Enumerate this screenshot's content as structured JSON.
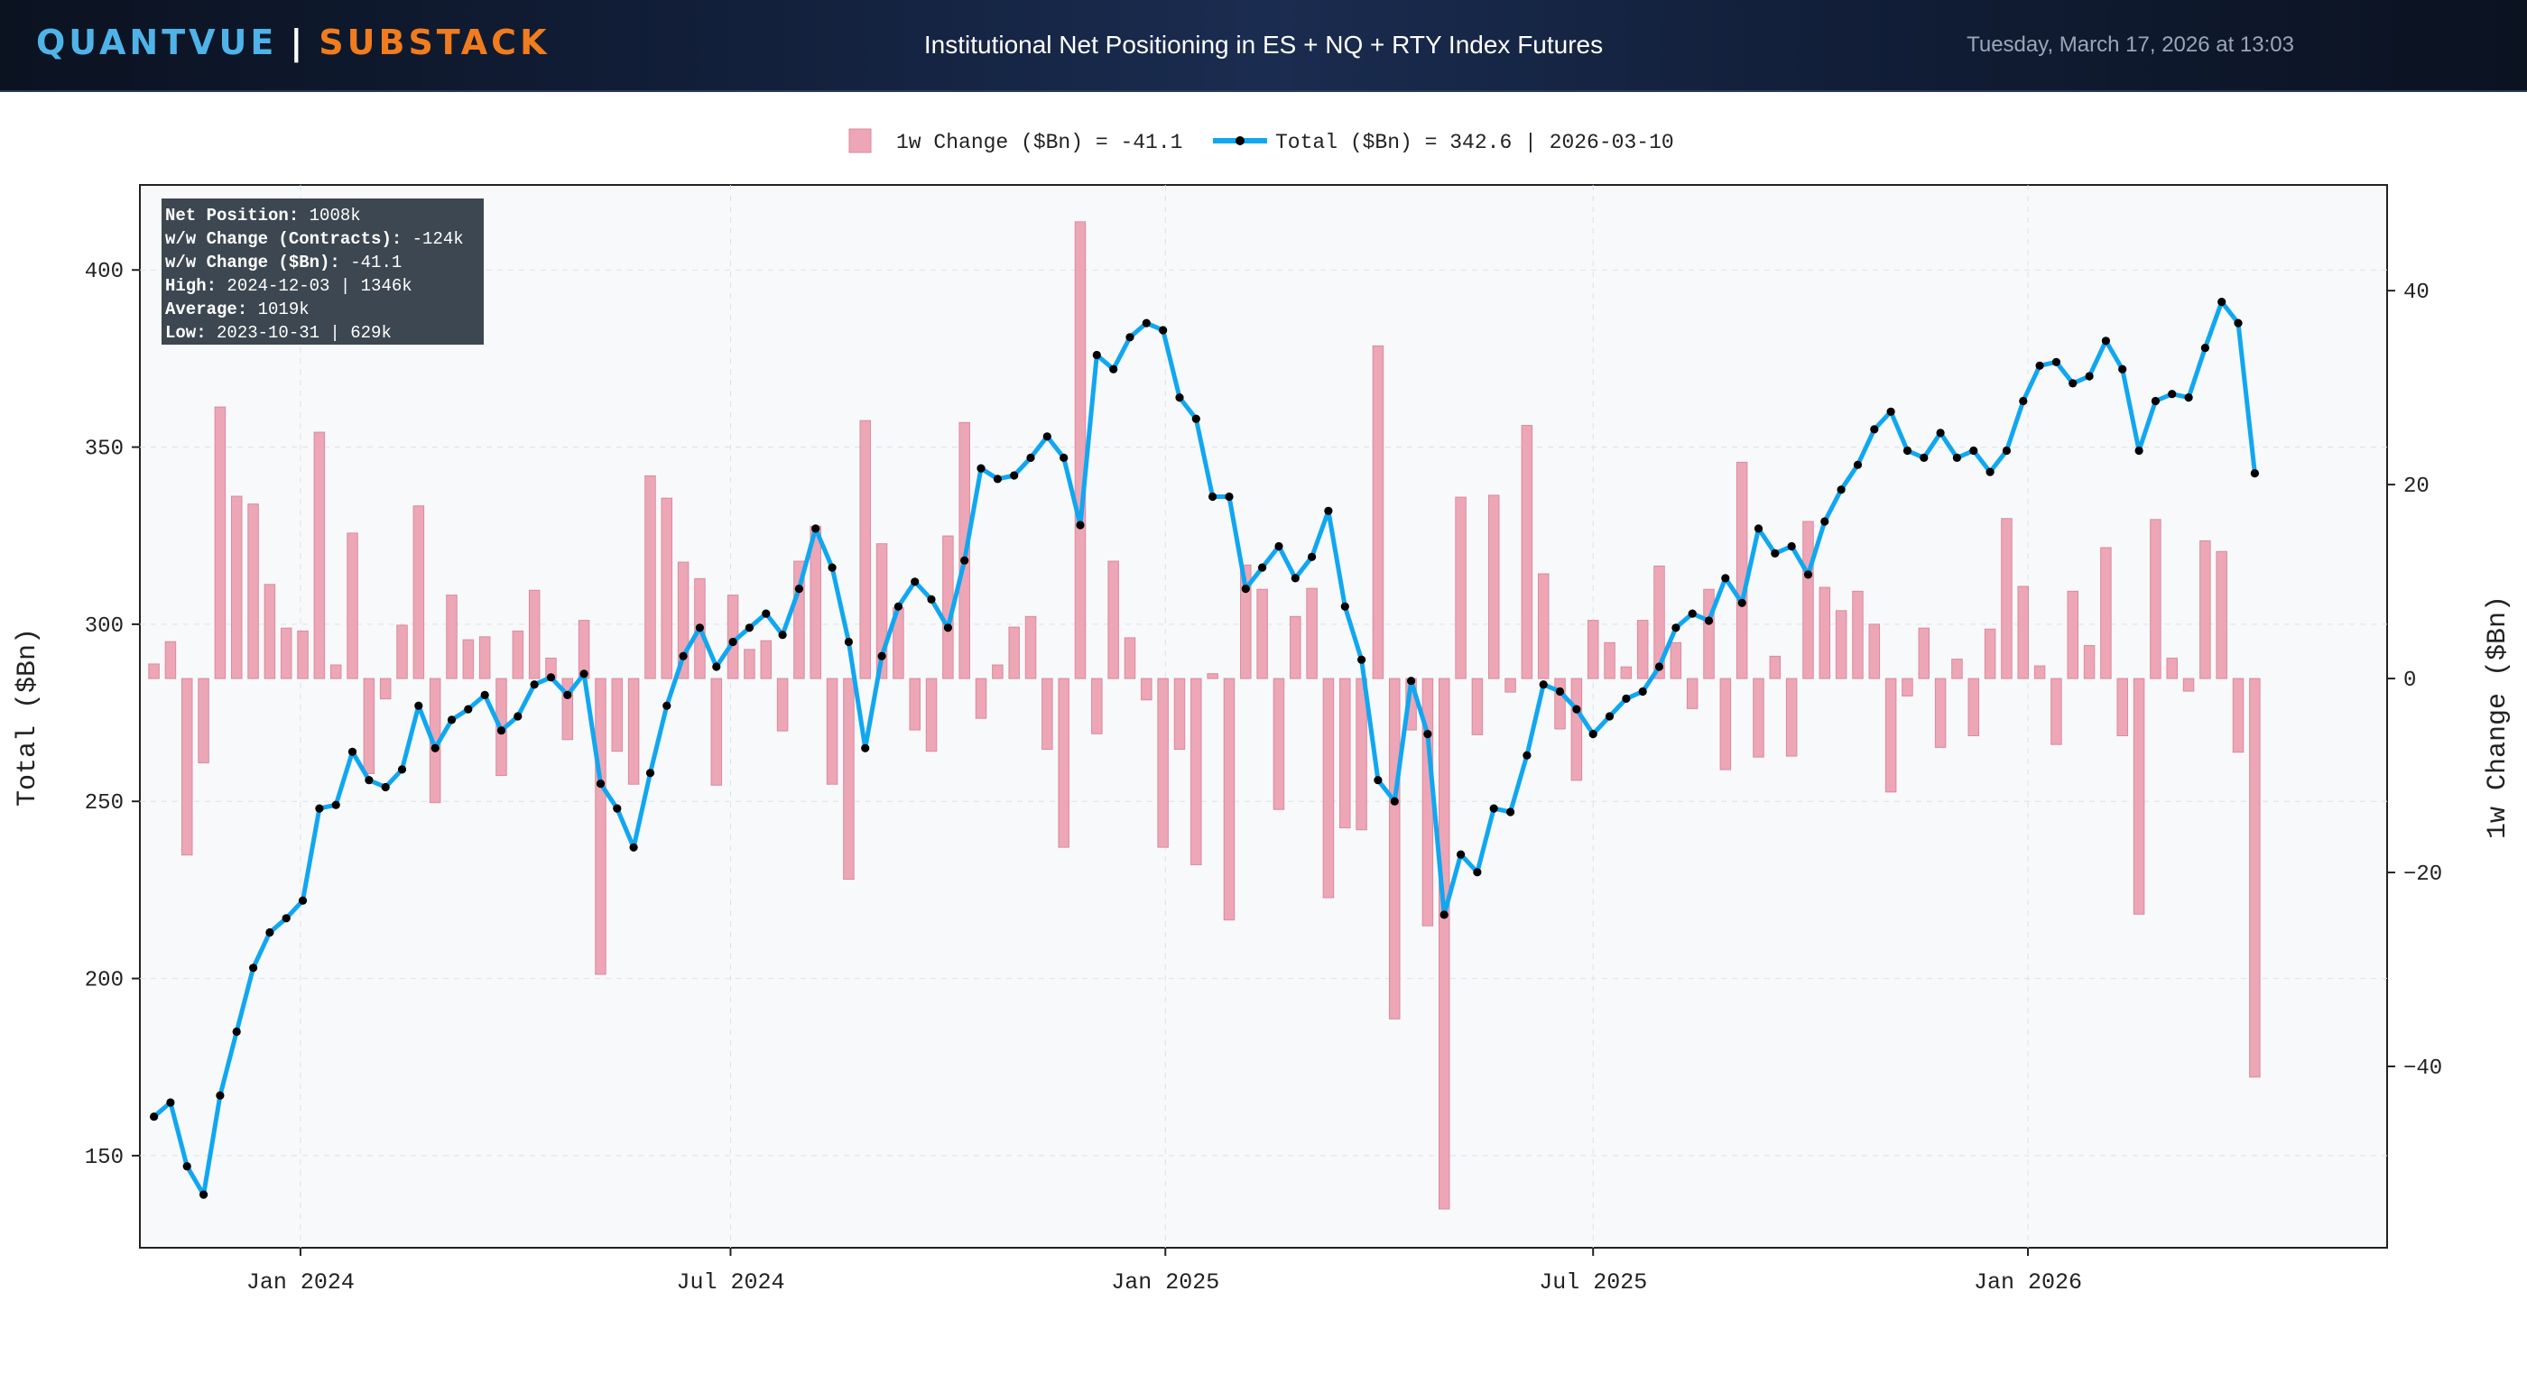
{
  "header": {
    "brand_left": "QUANTVUE",
    "brand_sep": "|",
    "brand_right": "SUBSTACK",
    "title": "Institutional Net Positioning in ES + NQ + RTY Index Futures",
    "timestamp": "Tuesday, March 17, 2026 at 13:03"
  },
  "colors": {
    "bar": "#eda6b6",
    "line": "#11a7f0",
    "marker": "#000000",
    "bg": "#f7f9fb"
  },
  "chart_data": {
    "type": "bar+line",
    "legend": {
      "bar_label": "1w Change ($Bn) = -41.1",
      "line_label": "Total ($Bn) = 342.6 | 2026-03-10"
    },
    "stats": [
      {
        "key": "Net Position:",
        "value": " 1008k"
      },
      {
        "key": "w/w Change (Contracts):",
        "value": " -124k"
      },
      {
        "key": "w/w Change ($Bn):",
        "value": " -41.1"
      },
      {
        "key": "High:",
        "value": " 2024-12-03 | 1346k"
      },
      {
        "key": "Average:",
        "value": " 1019k"
      },
      {
        "key": "Low:",
        "value": " 2023-10-31 | 629k"
      }
    ],
    "ylabel_left": "Total ($Bn)",
    "ylabel_right": "1w Change ($Bn)",
    "ylim_left": [
      124,
      424
    ],
    "ylim_right": [
      -58.7,
      50.9
    ],
    "yticks_left": [
      "150",
      "200",
      "250",
      "300",
      "350",
      "400"
    ],
    "yticks_right": [
      "−40",
      "−20",
      "0",
      "20",
      "40"
    ],
    "xticks": [
      "Jan 2024",
      "Jul 2024",
      "Jan 2025",
      "Jul 2025",
      "Jan 2026"
    ],
    "x_start": "2023-10-31",
    "x_end": "2026-03-10",
    "total": [
      161,
      165,
      147,
      139,
      167,
      185,
      203,
      213,
      217,
      222,
      248,
      249,
      264,
      256,
      254,
      259,
      277,
      265,
      273,
      276,
      280,
      270,
      274,
      283,
      285,
      280,
      286,
      255,
      248,
      237,
      258,
      277,
      291,
      299,
      288,
      295,
      299,
      303,
      297,
      310,
      327,
      316,
      295,
      265,
      291,
      305,
      312,
      307,
      299,
      318,
      344,
      341,
      342,
      347,
      353,
      347,
      328,
      376,
      372,
      381,
      385,
      383,
      364,
      358,
      336,
      336,
      310,
      316,
      322,
      313,
      319,
      332,
      305,
      290,
      256,
      250,
      284,
      269,
      218,
      235,
      230,
      248,
      247,
      263,
      283,
      281,
      276,
      269,
      274,
      279,
      281,
      288,
      299,
      303,
      301,
      313,
      306,
      327,
      320,
      322,
      314,
      329,
      338,
      345,
      355,
      360,
      349,
      347,
      354,
      347,
      349,
      343,
      349,
      363,
      373,
      374,
      368,
      370,
      380,
      372,
      349,
      363,
      365,
      364,
      378,
      391,
      385,
      342.6
    ],
    "change": [
      1.5,
      3.8,
      -18.2,
      -8.7,
      28,
      18.8,
      18,
      9.7,
      5.2,
      4.9,
      25.4,
      1.4,
      15,
      -9.8,
      -2.1,
      5.5,
      17.8,
      -12.8,
      8.6,
      4,
      4.3,
      -10,
      4.9,
      9.1,
      2.1,
      -6.3,
      6,
      -30.5,
      -7.5,
      -10.9,
      20.9,
      18.6,
      12,
      10.3,
      -11,
      8.6,
      3,
      3.9,
      -5.4,
      12.1,
      15.7,
      -10.9,
      -20.7,
      26.6,
      13.9,
      7.3,
      -5.3,
      -7.5,
      14.7,
      26.4,
      -4.1,
      1.4,
      5.3,
      6.4,
      -7.3,
      -17.4,
      47.1,
      -5.7,
      12.1,
      4.2,
      -2.2,
      -17.4,
      -7.3,
      -19.2,
      0.5,
      -24.9,
      11.7,
      9.2,
      -13.5,
      6.4,
      9.3,
      -22.6,
      -15.4,
      -15.6,
      34.3,
      -35.1,
      -5.3,
      -25.5,
      -54.7,
      18.7,
      -5.8,
      18.9,
      -1.4,
      26.1,
      10.8,
      -5.2,
      -10.5,
      6,
      3.7,
      1.2,
      6,
      11.6,
      3.7,
      -3.1,
      9.2,
      -9.4,
      22.3,
      -8.1,
      2.3,
      -8,
      16.2,
      9.4,
      7,
      9,
      5.6,
      -11.7,
      -1.8,
      5.2,
      -7.1,
      2,
      -5.9,
      5.1,
      16.5,
      9.5,
      1.3,
      -6.8,
      9,
      3.4,
      13.5,
      -5.9,
      -24.3,
      16.4,
      2.1,
      -1.3,
      14.2,
      13.1,
      -7.6,
      -41.1
    ],
    "rgb": [
      "#e8a3b5"
    ]
  }
}
